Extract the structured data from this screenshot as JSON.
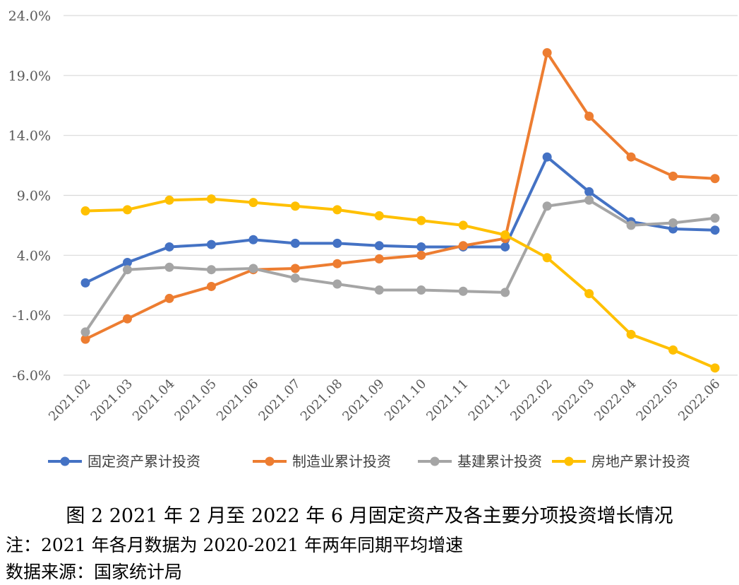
{
  "chart_data": {
    "type": "line",
    "categories": [
      "2021.02",
      "2021.03",
      "2021.04",
      "2021.05",
      "2021.06",
      "2021.07",
      "2021.08",
      "2021.09",
      "2021.10",
      "2021.11",
      "2021.12",
      "2022.02",
      "2022.03",
      "2022.04",
      "2022.05",
      "2022.06"
    ],
    "y_ticks": [
      "24.0%",
      "19.0%",
      "14.0%",
      "9.0%",
      "4.0%",
      "-1.0%",
      "-6.0%"
    ],
    "ylim": [
      -6,
      24
    ],
    "grid": true,
    "legend_position": "bottom",
    "series": [
      {
        "name": "固定资产累计投资",
        "color": "#4472C4",
        "values": [
          1.7,
          3.4,
          4.7,
          4.9,
          5.3,
          5.0,
          5.0,
          4.8,
          4.7,
          4.7,
          4.7,
          12.2,
          9.3,
          6.8,
          6.2,
          6.1
        ]
      },
      {
        "name": "制造业累计投资",
        "color": "#ED7D31",
        "values": [
          -3.0,
          -1.3,
          0.4,
          1.4,
          2.8,
          2.9,
          3.3,
          3.7,
          4.0,
          4.8,
          5.4,
          20.9,
          15.6,
          12.2,
          10.6,
          10.4
        ]
      },
      {
        "name": "基建累计投资",
        "color": "#A5A5A5",
        "values": [
          -2.4,
          2.8,
          3.0,
          2.8,
          2.9,
          2.1,
          1.6,
          1.1,
          1.1,
          1.0,
          0.9,
          8.1,
          8.6,
          6.5,
          6.7,
          7.1
        ]
      },
      {
        "name": "房地产累计投资",
        "color": "#FFC000",
        "values": [
          7.7,
          7.8,
          8.6,
          8.7,
          8.4,
          8.1,
          7.8,
          7.3,
          6.9,
          6.5,
          5.7,
          3.8,
          0.8,
          -2.6,
          -3.9,
          -5.4
        ]
      }
    ]
  },
  "caption": "图 2  2021 年 2 月至 2022 年 6 月固定资产及各主要分项投资增长情况",
  "notes": [
    "注：2021 年各月数据为 2020-2021 年两年同期平均增速",
    "数据来源：国家统计局"
  ]
}
